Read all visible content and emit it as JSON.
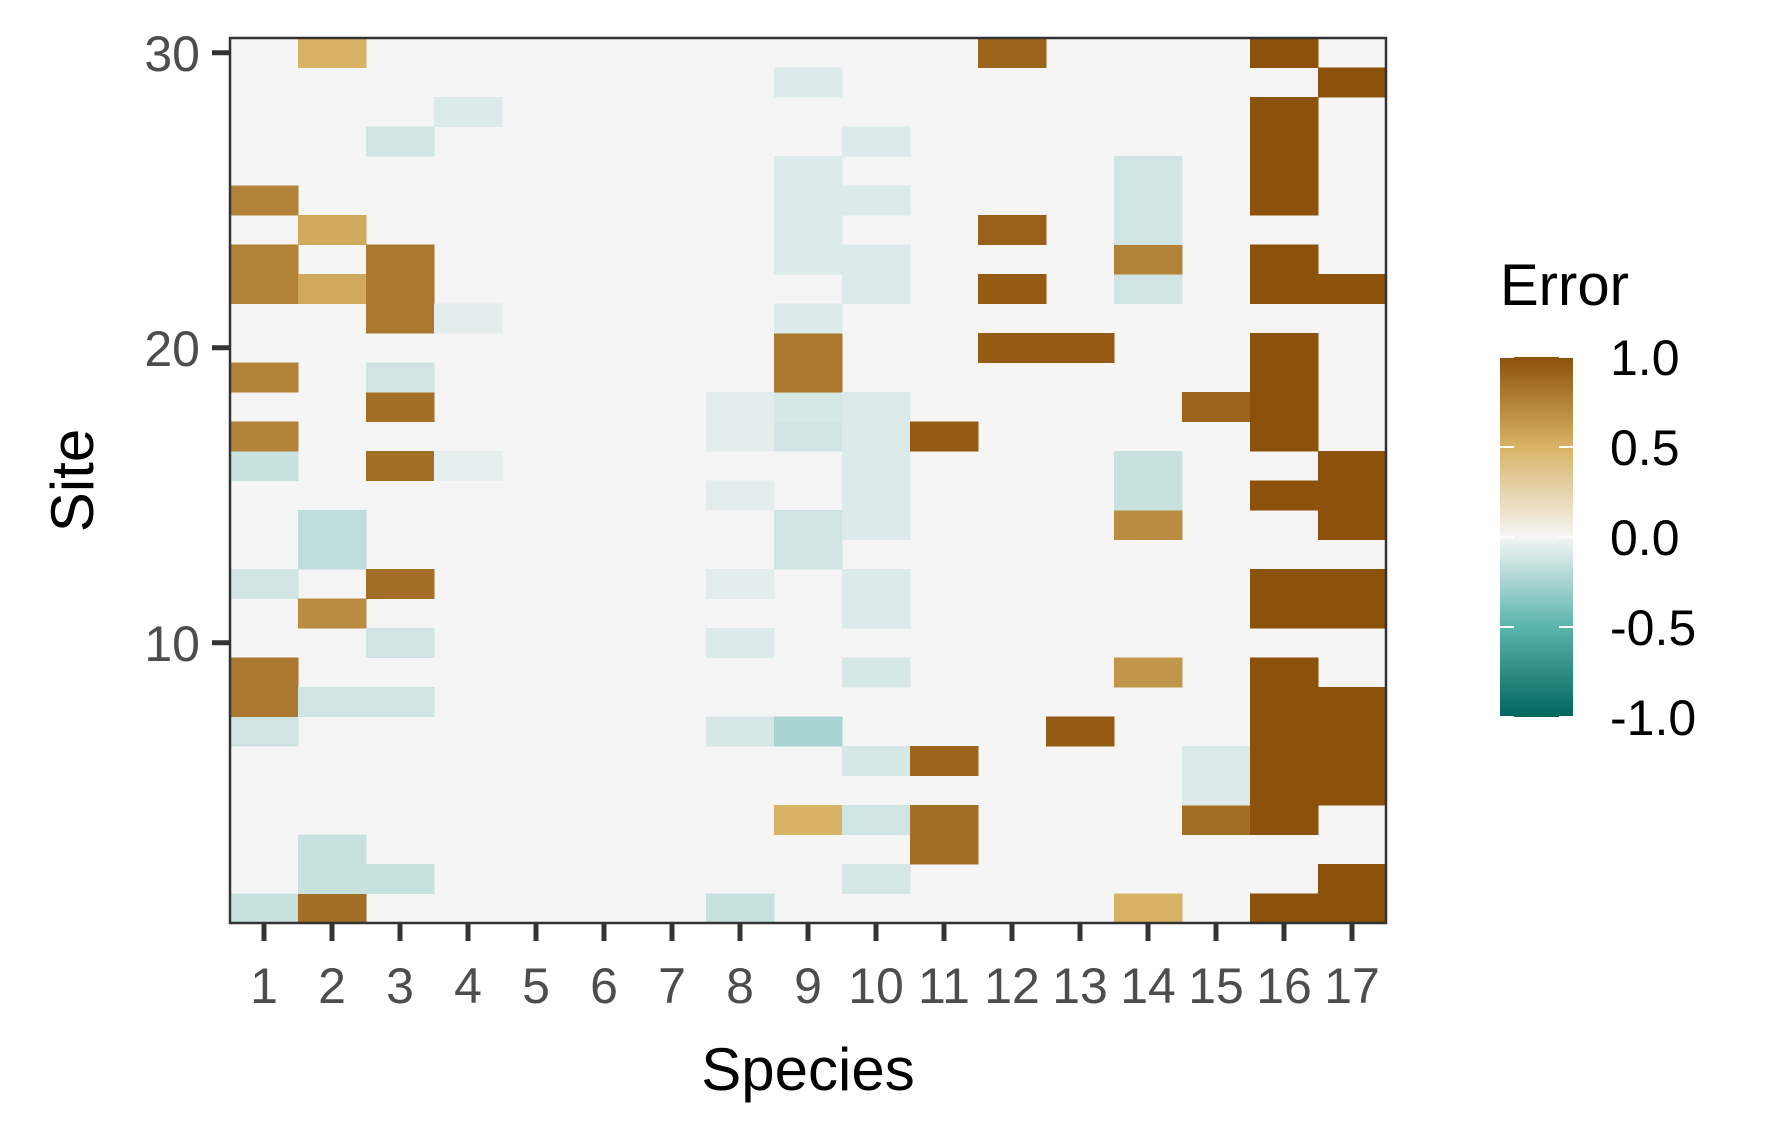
{
  "chart_data": {
    "type": "heatmap",
    "title": "",
    "xlabel": "Species",
    "ylabel": "Site",
    "x_categories": [
      "1",
      "2",
      "3",
      "4",
      "5",
      "6",
      "7",
      "8",
      "9",
      "10",
      "11",
      "12",
      "13",
      "14",
      "15",
      "16",
      "17"
    ],
    "y_range": [
      1,
      30
    ],
    "y_ticks": [
      "10",
      "20",
      "30"
    ],
    "y_tick_values": [
      10,
      20,
      30
    ],
    "legend": {
      "title": "Error",
      "placement": "right",
      "min": -1.0,
      "max": 1.0,
      "labels": [
        "1.0",
        "0.5",
        "0.0",
        "-0.5",
        "-1.0"
      ],
      "label_values": [
        1.0,
        0.5,
        0.0,
        -0.5,
        -1.0
      ]
    },
    "colors": {
      "negative_end": "#01665e",
      "negative_mid": "#5ab4ac",
      "zero": "#f5f5f5",
      "positive_mid": "#d8b365",
      "positive_end": "#8c510a"
    },
    "nonzero_cells": [
      {
        "species": 1,
        "site": 1,
        "value": -0.15
      },
      {
        "species": 1,
        "site": 7,
        "value": -0.12
      },
      {
        "species": 1,
        "site": 8,
        "value": 0.8
      },
      {
        "species": 1,
        "site": 9,
        "value": 0.8
      },
      {
        "species": 1,
        "site": 12,
        "value": -0.12
      },
      {
        "species": 1,
        "site": 16,
        "value": -0.15
      },
      {
        "species": 1,
        "site": 17,
        "value": 0.75
      },
      {
        "species": 1,
        "site": 19,
        "value": 0.75
      },
      {
        "species": 1,
        "site": 22,
        "value": 0.75
      },
      {
        "species": 1,
        "site": 23,
        "value": 0.75
      },
      {
        "species": 1,
        "site": 25,
        "value": 0.75
      },
      {
        "species": 2,
        "site": 1,
        "value": 0.85
      },
      {
        "species": 2,
        "site": 2,
        "value": -0.15
      },
      {
        "species": 2,
        "site": 3,
        "value": -0.15
      },
      {
        "species": 2,
        "site": 8,
        "value": -0.12
      },
      {
        "species": 2,
        "site": 11,
        "value": 0.7
      },
      {
        "species": 2,
        "site": 13,
        "value": -0.18
      },
      {
        "species": 2,
        "site": 14,
        "value": -0.18
      },
      {
        "species": 2,
        "site": 22,
        "value": 0.55
      },
      {
        "species": 2,
        "site": 24,
        "value": 0.55
      },
      {
        "species": 2,
        "site": 30,
        "value": 0.5
      },
      {
        "species": 3,
        "site": 2,
        "value": -0.15
      },
      {
        "species": 3,
        "site": 8,
        "value": -0.12
      },
      {
        "species": 3,
        "site": 10,
        "value": -0.12
      },
      {
        "species": 3,
        "site": 12,
        "value": 0.85
      },
      {
        "species": 3,
        "site": 16,
        "value": 0.85
      },
      {
        "species": 3,
        "site": 18,
        "value": 0.85
      },
      {
        "species": 3,
        "site": 19,
        "value": -0.12
      },
      {
        "species": 3,
        "site": 21,
        "value": 0.8
      },
      {
        "species": 3,
        "site": 22,
        "value": 0.8
      },
      {
        "species": 3,
        "site": 23,
        "value": 0.8
      },
      {
        "species": 3,
        "site": 27,
        "value": -0.12
      },
      {
        "species": 4,
        "site": 16,
        "value": -0.05
      },
      {
        "species": 4,
        "site": 21,
        "value": -0.06
      },
      {
        "species": 4,
        "site": 28,
        "value": -0.08
      },
      {
        "species": 8,
        "site": 1,
        "value": -0.15
      },
      {
        "species": 8,
        "site": 7,
        "value": -0.1
      },
      {
        "species": 8,
        "site": 10,
        "value": -0.08
      },
      {
        "species": 8,
        "site": 12,
        "value": -0.06
      },
      {
        "species": 8,
        "site": 15,
        "value": -0.06
      },
      {
        "species": 8,
        "site": 17,
        "value": -0.06
      },
      {
        "species": 8,
        "site": 18,
        "value": -0.06
      },
      {
        "species": 9,
        "site": 4,
        "value": 0.5
      },
      {
        "species": 9,
        "site": 7,
        "value": -0.25
      },
      {
        "species": 9,
        "site": 13,
        "value": -0.12
      },
      {
        "species": 9,
        "site": 14,
        "value": -0.12
      },
      {
        "species": 9,
        "site": 17,
        "value": -0.12
      },
      {
        "species": 9,
        "site": 18,
        "value": -0.1
      },
      {
        "species": 9,
        "site": 19,
        "value": 0.8
      },
      {
        "species": 9,
        "site": 20,
        "value": 0.8
      },
      {
        "species": 9,
        "site": 21,
        "value": -0.08
      },
      {
        "species": 9,
        "site": 23,
        "value": -0.08
      },
      {
        "species": 9,
        "site": 24,
        "value": -0.08
      },
      {
        "species": 9,
        "site": 25,
        "value": -0.08
      },
      {
        "species": 9,
        "site": 26,
        "value": -0.08
      },
      {
        "species": 9,
        "site": 29,
        "value": -0.08
      },
      {
        "species": 10,
        "site": 2,
        "value": -0.1
      },
      {
        "species": 10,
        "site": 4,
        "value": -0.12
      },
      {
        "species": 10,
        "site": 6,
        "value": -0.1
      },
      {
        "species": 10,
        "site": 9,
        "value": -0.1
      },
      {
        "species": 10,
        "site": 11,
        "value": -0.08
      },
      {
        "species": 10,
        "site": 12,
        "value": -0.08
      },
      {
        "species": 10,
        "site": 14,
        "value": -0.08
      },
      {
        "species": 10,
        "site": 15,
        "value": -0.08
      },
      {
        "species": 10,
        "site": 16,
        "value": -0.08
      },
      {
        "species": 10,
        "site": 17,
        "value": -0.08
      },
      {
        "species": 10,
        "site": 18,
        "value": -0.08
      },
      {
        "species": 10,
        "site": 22,
        "value": -0.08
      },
      {
        "species": 10,
        "site": 23,
        "value": -0.08
      },
      {
        "species": 10,
        "site": 25,
        "value": -0.08
      },
      {
        "species": 10,
        "site": 27,
        "value": -0.08
      },
      {
        "species": 11,
        "site": 3,
        "value": 0.85
      },
      {
        "species": 11,
        "site": 4,
        "value": 0.85
      },
      {
        "species": 11,
        "site": 6,
        "value": 0.9
      },
      {
        "species": 11,
        "site": 17,
        "value": 0.95
      },
      {
        "species": 12,
        "site": 20,
        "value": 0.95
      },
      {
        "species": 12,
        "site": 22,
        "value": 0.95
      },
      {
        "species": 12,
        "site": 24,
        "value": 0.92
      },
      {
        "species": 12,
        "site": 30,
        "value": 0.9
      },
      {
        "species": 13,
        "site": 7,
        "value": 0.95
      },
      {
        "species": 13,
        "site": 20,
        "value": 0.95
      },
      {
        "species": 14,
        "site": 1,
        "value": 0.5
      },
      {
        "species": 14,
        "site": 9,
        "value": 0.65
      },
      {
        "species": 14,
        "site": 14,
        "value": 0.7
      },
      {
        "species": 14,
        "site": 15,
        "value": -0.15
      },
      {
        "species": 14,
        "site": 16,
        "value": -0.15
      },
      {
        "species": 14,
        "site": 22,
        "value": -0.12
      },
      {
        "species": 14,
        "site": 23,
        "value": 0.75
      },
      {
        "species": 14,
        "site": 24,
        "value": -0.12
      },
      {
        "species": 14,
        "site": 25,
        "value": -0.12
      },
      {
        "species": 14,
        "site": 26,
        "value": -0.12
      },
      {
        "species": 15,
        "site": 4,
        "value": 0.85
      },
      {
        "species": 15,
        "site": 5,
        "value": -0.08
      },
      {
        "species": 15,
        "site": 6,
        "value": -0.08
      },
      {
        "species": 15,
        "site": 18,
        "value": 0.9
      },
      {
        "species": 16,
        "site": 1,
        "value": 1.0
      },
      {
        "species": 16,
        "site": 4,
        "value": 1.0
      },
      {
        "species": 16,
        "site": 5,
        "value": 1.0
      },
      {
        "species": 16,
        "site": 6,
        "value": 1.0
      },
      {
        "species": 16,
        "site": 7,
        "value": 1.0
      },
      {
        "species": 16,
        "site": 8,
        "value": 1.0
      },
      {
        "species": 16,
        "site": 9,
        "value": 1.0
      },
      {
        "species": 16,
        "site": 11,
        "value": 1.0
      },
      {
        "species": 16,
        "site": 12,
        "value": 1.0
      },
      {
        "species": 16,
        "site": 15,
        "value": 1.0
      },
      {
        "species": 16,
        "site": 17,
        "value": 1.0
      },
      {
        "species": 16,
        "site": 18,
        "value": 1.0
      },
      {
        "species": 16,
        "site": 19,
        "value": 1.0
      },
      {
        "species": 16,
        "site": 20,
        "value": 1.0
      },
      {
        "species": 16,
        "site": 22,
        "value": 1.0
      },
      {
        "species": 16,
        "site": 23,
        "value": 1.0
      },
      {
        "species": 16,
        "site": 25,
        "value": 1.0
      },
      {
        "species": 16,
        "site": 26,
        "value": 1.0
      },
      {
        "species": 16,
        "site": 27,
        "value": 1.0
      },
      {
        "species": 16,
        "site": 28,
        "value": 1.0
      },
      {
        "species": 16,
        "site": 30,
        "value": 1.0
      },
      {
        "species": 17,
        "site": 1,
        "value": 1.0
      },
      {
        "species": 17,
        "site": 2,
        "value": 1.0
      },
      {
        "species": 17,
        "site": 5,
        "value": 1.0
      },
      {
        "species": 17,
        "site": 6,
        "value": 1.0
      },
      {
        "species": 17,
        "site": 7,
        "value": 1.0
      },
      {
        "species": 17,
        "site": 8,
        "value": 1.0
      },
      {
        "species": 17,
        "site": 11,
        "value": 1.0
      },
      {
        "species": 17,
        "site": 12,
        "value": 1.0
      },
      {
        "species": 17,
        "site": 14,
        "value": 1.0
      },
      {
        "species": 17,
        "site": 15,
        "value": 1.0
      },
      {
        "species": 17,
        "site": 16,
        "value": 1.0
      },
      {
        "species": 17,
        "site": 22,
        "value": 1.0
      },
      {
        "species": 17,
        "site": 29,
        "value": 1.0
      }
    ]
  }
}
